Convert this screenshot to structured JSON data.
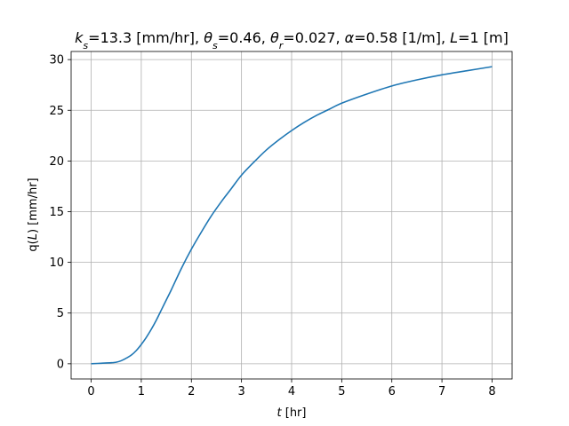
{
  "chart_data": {
    "type": "line",
    "title_parts": {
      "ks_sym": "k",
      "ks_sub": "s",
      "ks_val": "=13.3 [mm/hr], ",
      "ths_sym": "θ",
      "ths_sub": "s",
      "ths_val": "=0.46, ",
      "thr_sym": "θ",
      "thr_sub": "r",
      "thr_val": "=0.027, ",
      "alpha_sym": "α",
      "alpha_val": "=0.58 [1/m], ",
      "L_sym": "L",
      "L_val": "=1 [m]"
    },
    "xlabel_parts": {
      "sym": "t",
      "unit": " [hr]"
    },
    "ylabel_parts": {
      "pre": "q(",
      "sym": "L",
      "post": ") [mm/hr]"
    },
    "xlim": [
      -0.4,
      8.4
    ],
    "ylim": [
      -1.5,
      30.8
    ],
    "xticks": [
      0,
      1,
      2,
      3,
      4,
      5,
      6,
      7,
      8
    ],
    "yticks": [
      0,
      5,
      10,
      15,
      20,
      25,
      30
    ],
    "grid": true,
    "line_color": "#1f77b4",
    "series": [
      {
        "x": [
          0,
          0.2,
          0.4,
          0.5,
          0.6,
          0.7,
          0.8,
          0.9,
          1.0,
          1.1,
          1.2,
          1.3,
          1.4,
          1.5,
          1.6,
          1.8,
          2.0,
          2.2,
          2.4,
          2.6,
          2.8,
          3.0,
          3.25,
          3.5,
          3.75,
          4.0,
          4.25,
          4.5,
          4.75,
          5.0,
          5.5,
          6.0,
          6.5,
          7.0,
          7.5,
          8.0
        ],
        "values": [
          0,
          0.05,
          0.1,
          0.15,
          0.3,
          0.55,
          0.85,
          1.3,
          1.9,
          2.6,
          3.4,
          4.3,
          5.3,
          6.3,
          7.3,
          9.4,
          11.3,
          13.0,
          14.6,
          16.0,
          17.3,
          18.6,
          19.9,
          21.1,
          22.1,
          23.0,
          23.8,
          24.5,
          25.1,
          25.7,
          26.6,
          27.4,
          28.0,
          28.5,
          28.9,
          29.3
        ]
      }
    ]
  }
}
